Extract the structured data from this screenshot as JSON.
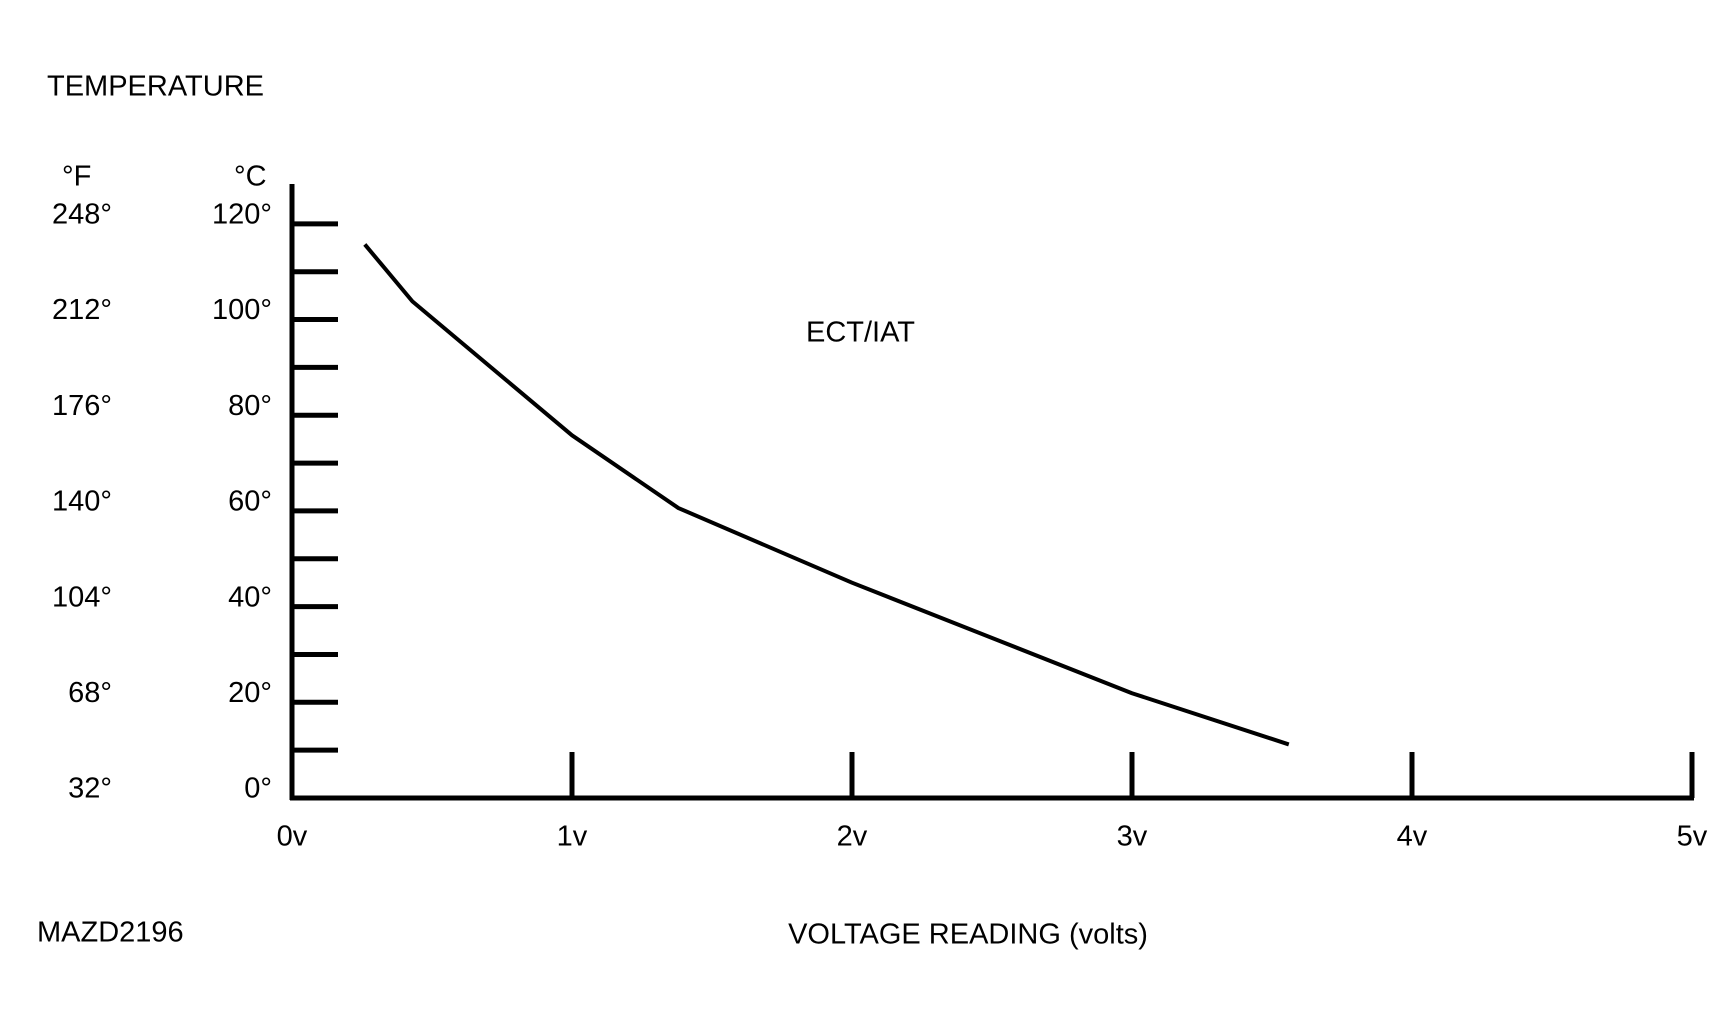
{
  "chart_data": {
    "type": "line",
    "title": "TEMPERATURE",
    "y_unit_label": "°C",
    "y2_unit_label": "°F",
    "x_label": "VOLTAGE READING (volts)",
    "annotation": "ECT/IAT",
    "figure_id": "MAZD2196",
    "xlim": [
      0,
      5
    ],
    "xticks": [
      {
        "value": 0,
        "label": "0v"
      },
      {
        "value": 1,
        "label": "1v"
      },
      {
        "value": 2,
        "label": "2v"
      },
      {
        "value": 3,
        "label": "3v"
      },
      {
        "value": 4,
        "label": "4v"
      },
      {
        "value": 5,
        "label": "5v"
      }
    ],
    "ylim": [
      0,
      130
    ],
    "yticks": [
      {
        "value": 0,
        "label": "0°"
      },
      {
        "value": 20,
        "label": "20°"
      },
      {
        "value": 40,
        "label": "40°"
      },
      {
        "value": 60,
        "label": "60°"
      },
      {
        "value": 80,
        "label": "80°"
      },
      {
        "value": 100,
        "label": "100°"
      },
      {
        "value": 120,
        "label": "120°"
      }
    ],
    "minor_yticks": [
      10,
      30,
      50,
      70,
      90,
      110
    ],
    "y2lim": [
      32,
      266
    ],
    "y2ticks": [
      {
        "value": 32,
        "label": "32°"
      },
      {
        "value": 68,
        "label": "68°"
      },
      {
        "value": 104,
        "label": "104°"
      },
      {
        "value": 140,
        "label": "140°"
      },
      {
        "value": 176,
        "label": "176°"
      },
      {
        "value": 212,
        "label": "212°"
      },
      {
        "value": 248,
        "label": "248°"
      }
    ],
    "color": "#000000",
    "x": [
      0.26,
      0.43,
      1.0,
      1.38,
      2.0,
      3.0,
      3.56
    ],
    "values": [
      115.7,
      103.8,
      75.8,
      60.6,
      45,
      21.9,
      11.2
    ]
  }
}
